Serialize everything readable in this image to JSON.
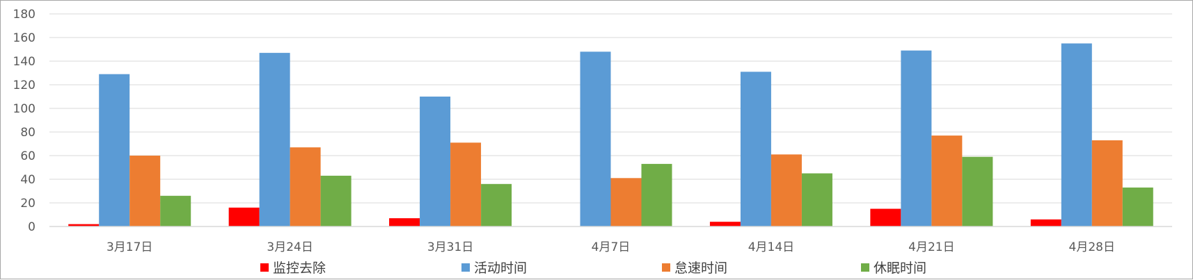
{
  "chart_data": {
    "type": "bar",
    "categories": [
      "3月17日",
      "3月24日",
      "3月31日",
      "4月7日",
      "4月14日",
      "4月21日",
      "4月28日"
    ],
    "series": [
      {
        "name": "监控去除",
        "color": "#ff0000",
        "values": [
          2,
          16,
          7,
          0,
          4,
          15,
          6
        ]
      },
      {
        "name": "活动时间",
        "color": "#5b9bd5",
        "values": [
          129,
          147,
          110,
          148,
          131,
          149,
          155
        ]
      },
      {
        "name": "怠速时间",
        "color": "#ed7d31",
        "values": [
          60,
          67,
          71,
          41,
          61,
          77,
          73
        ]
      },
      {
        "name": "休眠时间",
        "color": "#70ad47",
        "values": [
          26,
          43,
          36,
          53,
          45,
          59,
          33
        ]
      }
    ],
    "ylim": [
      0,
      180
    ],
    "yticks": [
      0,
      20,
      40,
      60,
      80,
      100,
      120,
      140,
      160,
      180
    ],
    "grid": true,
    "legend": "bottom"
  }
}
